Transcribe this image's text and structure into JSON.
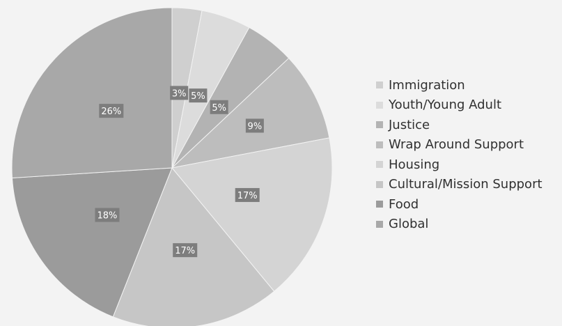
{
  "chart_data": {
    "type": "pie",
    "title": "",
    "legend_position": "right",
    "slices": [
      {
        "label": "Immigration",
        "value": 3,
        "display": "3%",
        "color": "#cfcfcf"
      },
      {
        "label": "Youth/Young Adult",
        "value": 5,
        "display": "5%",
        "color": "#dcdcdc"
      },
      {
        "label": "Justice",
        "value": 5,
        "display": "5%",
        "color": "#b3b3b3"
      },
      {
        "label": "Wrap Around Support",
        "value": 9,
        "display": "9%",
        "color": "#bdbdbd"
      },
      {
        "label": "Housing",
        "value": 17,
        "display": "17%",
        "color": "#d4d4d4"
      },
      {
        "label": "Cultural/Mission Support",
        "value": 17,
        "display": "17%",
        "color": "#c6c6c6"
      },
      {
        "label": "Food",
        "value": 18,
        "display": "18%",
        "color": "#9b9b9b"
      },
      {
        "label": "Global",
        "value": 26,
        "display": "26%",
        "color": "#a8a8a8"
      }
    ],
    "data_label_bg": "#7d7d7d",
    "data_label_color": "#ffffff"
  }
}
